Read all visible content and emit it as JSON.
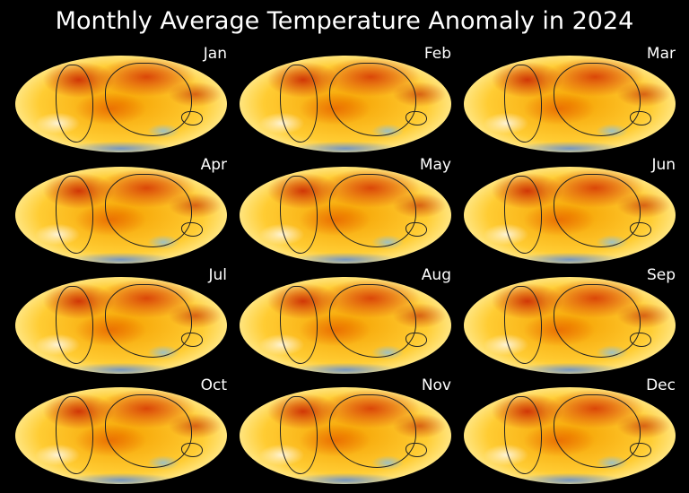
{
  "title": "Monthly Average Temperature Anomaly in 2024",
  "panels": [
    {
      "month": "Jan"
    },
    {
      "month": "Feb"
    },
    {
      "month": "Mar"
    },
    {
      "month": "Apr"
    },
    {
      "month": "May"
    },
    {
      "month": "Jun"
    },
    {
      "month": "Jul"
    },
    {
      "month": "Aug"
    },
    {
      "month": "Sep"
    },
    {
      "month": "Oct"
    },
    {
      "month": "Nov"
    },
    {
      "month": "Dec"
    }
  ],
  "projection": "Mollweide",
  "colormap": {
    "cold": "#1e5adc",
    "neutral": "#ffffff",
    "warm": "#ffcc33",
    "hot": "#c81e00"
  }
}
